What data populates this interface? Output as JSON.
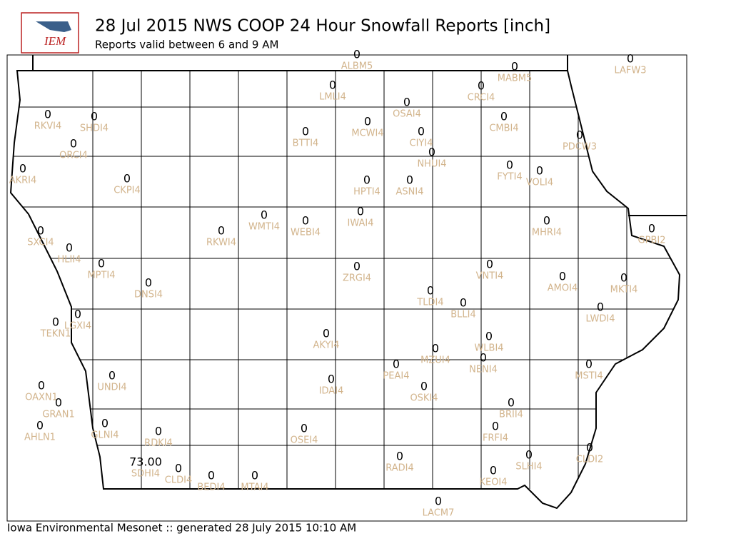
{
  "header": {
    "title": "28 Jul 2015 NWS COOP 24 Hour Snowfall Reports [inch]",
    "subtitle": "Reports valid between 6 and 9 AM",
    "logo": "IEM"
  },
  "footer": "Iowa Environmental Mesonet :: generated 28 July 2015 10:10 AM",
  "stations": [
    {
      "id": "ALBM5",
      "value": 0
    },
    {
      "id": "LAFW3",
      "value": 0
    },
    {
      "id": "MABM5",
      "value": 0
    },
    {
      "id": "LMLI4",
      "value": 0
    },
    {
      "id": "CRCI4",
      "value": 0
    },
    {
      "id": "OSAI4",
      "value": 0
    },
    {
      "id": "RKVI4",
      "value": 0
    },
    {
      "id": "SHDI4",
      "value": 0
    },
    {
      "id": "MCWI4",
      "value": 0
    },
    {
      "id": "CMBI4",
      "value": 0
    },
    {
      "id": "BTTI4",
      "value": 0
    },
    {
      "id": "CIYI4",
      "value": 0
    },
    {
      "id": "PDCW3",
      "value": 0
    },
    {
      "id": "ORCI4",
      "value": 0
    },
    {
      "id": "NHUI4",
      "value": 0
    },
    {
      "id": "AKRI4",
      "value": 0
    },
    {
      "id": "FYTI4",
      "value": 0
    },
    {
      "id": "VOLI4",
      "value": 0
    },
    {
      "id": "CKPI4",
      "value": 0
    },
    {
      "id": "HPTI4",
      "value": 0
    },
    {
      "id": "ASNI4",
      "value": 0
    },
    {
      "id": "IWAI4",
      "value": 0
    },
    {
      "id": "WMTI4",
      "value": 0
    },
    {
      "id": "WEBI4",
      "value": 0
    },
    {
      "id": "MHRI4",
      "value": 0
    },
    {
      "id": "GPBI2",
      "value": 0
    },
    {
      "id": "SXCI4",
      "value": 0
    },
    {
      "id": "RKWI4",
      "value": 0
    },
    {
      "id": "HLII4",
      "value": 0
    },
    {
      "id": "MPTI4",
      "value": 0
    },
    {
      "id": "VNTI4",
      "value": 0
    },
    {
      "id": "AMOI4",
      "value": 0
    },
    {
      "id": "MKTI4",
      "value": 0
    },
    {
      "id": "ZRGI4",
      "value": 0
    },
    {
      "id": "DNSI4",
      "value": 0
    },
    {
      "id": "TLDI4",
      "value": 0
    },
    {
      "id": "BLLI4",
      "value": 0
    },
    {
      "id": "LWDI4",
      "value": 0
    },
    {
      "id": "TEKN1",
      "value": 0
    },
    {
      "id": "LGXI4",
      "value": 0
    },
    {
      "id": "AKYI4",
      "value": 0
    },
    {
      "id": "WLBI4",
      "value": 0
    },
    {
      "id": "MZUI4",
      "value": 0
    },
    {
      "id": "NENI4",
      "value": 0
    },
    {
      "id": "PEAI4",
      "value": 0
    },
    {
      "id": "MSTI4",
      "value": 0
    },
    {
      "id": "UNDI4",
      "value": 0
    },
    {
      "id": "IDAI4",
      "value": 0
    },
    {
      "id": "OSKI4",
      "value": 0
    },
    {
      "id": "OAXN1",
      "value": 0
    },
    {
      "id": "GRAN1",
      "value": 0
    },
    {
      "id": "BRII4",
      "value": 0
    },
    {
      "id": "AHLN1",
      "value": 0
    },
    {
      "id": "GLNI4",
      "value": 0
    },
    {
      "id": "FRFI4",
      "value": 0
    },
    {
      "id": "RDKI4",
      "value": 0
    },
    {
      "id": "OSEI4",
      "value": 0
    },
    {
      "id": "CLDI2",
      "value": 0
    },
    {
      "id": "RADI4",
      "value": 0
    },
    {
      "id": "SLHI4",
      "value": 0
    },
    {
      "id": "SDHI4",
      "value": 73,
      "value_label": "73.00"
    },
    {
      "id": "CLDI4",
      "value": 0
    },
    {
      "id": "BEDI4",
      "value": 0
    },
    {
      "id": "MTAI4",
      "value": 0
    },
    {
      "id": "KEOI4",
      "value": 0
    },
    {
      "id": "LACM7",
      "value": 0
    }
  ]
}
